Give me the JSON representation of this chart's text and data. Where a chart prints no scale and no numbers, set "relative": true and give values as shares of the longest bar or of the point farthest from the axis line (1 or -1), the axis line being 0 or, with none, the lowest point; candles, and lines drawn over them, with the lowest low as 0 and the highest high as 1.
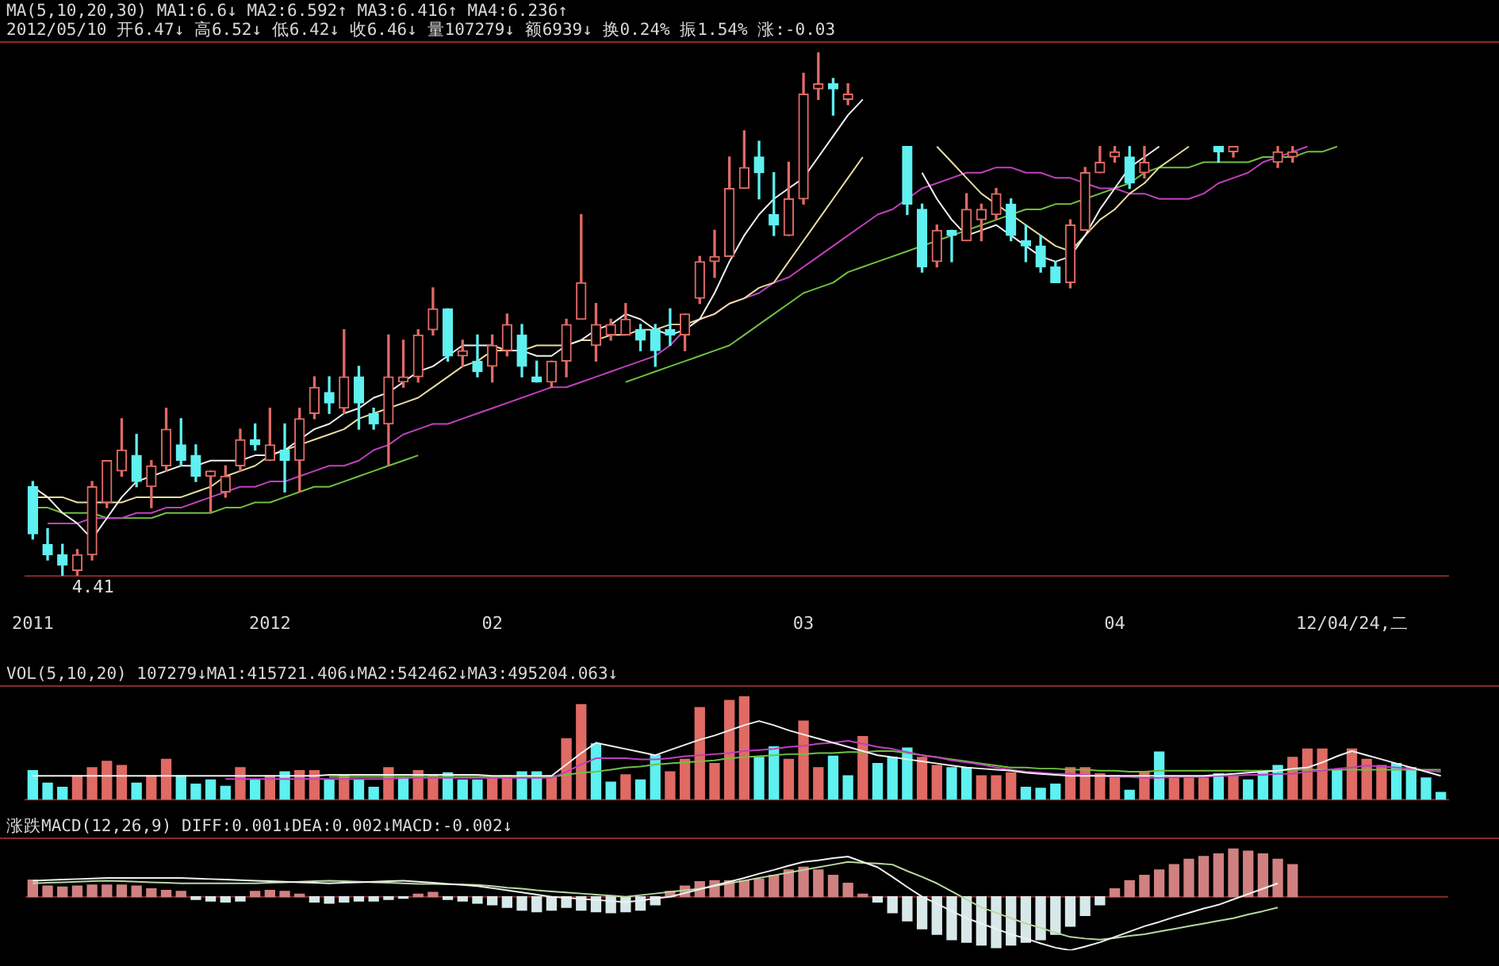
{
  "chart_data": [
    {
      "type": "candlestick",
      "relative": true,
      "tick_labels": "x",
      "categories": [
        "2011",
        null,
        null,
        null,
        null,
        null,
        null,
        null,
        null,
        null,
        null,
        null,
        null,
        null,
        null,
        null,
        "2012",
        null,
        null,
        null,
        null,
        null,
        null,
        null,
        null,
        null,
        null,
        null,
        null,
        null,
        null,
        "02",
        null,
        null,
        null,
        null,
        null,
        null,
        null,
        null,
        null,
        null,
        null,
        null,
        null,
        null,
        null,
        null,
        null,
        null,
        null,
        null,
        "03",
        null,
        null,
        null,
        null,
        null,
        null,
        null,
        null,
        null,
        null,
        null,
        null,
        null,
        null,
        null,
        null,
        null,
        null,
        null,
        null,
        "04",
        null,
        null,
        null,
        null,
        null,
        null,
        null,
        null,
        null,
        null,
        null,
        null,
        null,
        null,
        null,
        "12/04/24,二",
        null,
        null,
        null,
        null,
        null,
        null
      ],
      "title": "MA(5,10,20,30) MA1:6.6↓ MA2:6.592↑ MA3:6.416↑ MA4:6.236↑",
      "subtitle": "2012/05/10 开6.47↓ 高6.52↓ 低6.42↓ 收6.46↓ 量107279↓ 额6939↓ 换0.24% 振1.54% 涨:-0.03",
      "annotations": [
        "4.41"
      ],
      "series": [
        {
          "ohlc": [
            [
              0.17,
              0.18,
              0.07,
              0.08
            ],
            [
              0.06,
              0.09,
              0.03,
              0.04
            ],
            [
              0.04,
              0.06,
              0.0,
              0.02
            ],
            [
              0.01,
              0.05,
              0.0,
              0.04
            ],
            [
              0.04,
              0.18,
              0.03,
              0.17
            ],
            [
              0.14,
              0.22,
              0.13,
              0.22
            ],
            [
              0.2,
              0.3,
              0.19,
              0.24
            ],
            [
              0.23,
              0.27,
              0.17,
              0.18
            ],
            [
              0.17,
              0.22,
              0.13,
              0.21
            ],
            [
              0.21,
              0.32,
              0.2,
              0.28
            ],
            [
              0.25,
              0.3,
              0.21,
              0.22
            ],
            [
              0.23,
              0.25,
              0.18,
              0.19
            ],
            [
              0.19,
              0.2,
              0.12,
              0.2
            ],
            [
              0.16,
              0.21,
              0.15,
              0.19
            ],
            [
              0.21,
              0.28,
              0.2,
              0.26
            ],
            [
              0.26,
              0.29,
              0.24,
              0.25
            ],
            [
              0.22,
              0.32,
              0.22,
              0.25
            ],
            [
              0.24,
              0.29,
              0.16,
              0.22
            ],
            [
              0.22,
              0.32,
              0.16,
              0.3
            ],
            [
              0.31,
              0.38,
              0.3,
              0.36
            ],
            [
              0.35,
              0.38,
              0.31,
              0.33
            ],
            [
              0.32,
              0.47,
              0.31,
              0.38
            ],
            [
              0.38,
              0.4,
              0.28,
              0.33
            ],
            [
              0.31,
              0.32,
              0.28,
              0.29
            ],
            [
              0.29,
              0.46,
              0.21,
              0.38
            ],
            [
              0.37,
              0.45,
              0.36,
              0.38
            ],
            [
              0.38,
              0.47,
              0.37,
              0.46
            ],
            [
              0.47,
              0.55,
              0.46,
              0.51
            ],
            [
              0.51,
              0.51,
              0.41,
              0.42
            ],
            [
              0.42,
              0.45,
              0.4,
              0.43
            ],
            [
              0.41,
              0.46,
              0.38,
              0.39
            ],
            [
              0.4,
              0.46,
              0.37,
              0.44
            ],
            [
              0.43,
              0.5,
              0.42,
              0.48
            ],
            [
              0.46,
              0.48,
              0.38,
              0.4
            ],
            [
              0.38,
              0.41,
              0.37,
              0.37
            ],
            [
              0.37,
              0.41,
              0.36,
              0.41
            ],
            [
              0.41,
              0.49,
              0.38,
              0.48
            ],
            [
              0.49,
              0.69,
              0.49,
              0.56
            ],
            [
              0.44,
              0.52,
              0.41,
              0.48
            ],
            [
              0.46,
              0.49,
              0.45,
              0.48
            ],
            [
              0.46,
              0.52,
              0.46,
              0.49
            ],
            [
              0.47,
              0.48,
              0.43,
              0.45
            ],
            [
              0.47,
              0.48,
              0.4,
              0.43
            ],
            [
              0.47,
              0.51,
              0.44,
              0.46
            ],
            [
              0.46,
              0.5,
              0.43,
              0.5
            ],
            [
              0.53,
              0.61,
              0.52,
              0.6
            ],
            [
              0.6,
              0.66,
              0.57,
              0.61
            ],
            [
              0.61,
              0.8,
              0.61,
              0.74
            ],
            [
              0.74,
              0.85,
              0.74,
              0.78
            ],
            [
              0.8,
              0.83,
              0.72,
              0.77
            ],
            [
              0.69,
              0.77,
              0.65,
              0.67
            ],
            [
              0.65,
              0.79,
              0.65,
              0.72
            ],
            [
              0.72,
              0.96,
              0.71,
              0.92
            ],
            [
              0.93,
              1.0,
              0.91,
              0.94
            ],
            [
              0.94,
              0.95,
              0.88,
              0.93
            ],
            [
              0.91,
              0.94,
              0.9,
              0.92
            ],
            null,
            null,
            null,
            [
              0.82,
              0.82,
              0.69,
              0.71
            ],
            [
              0.7,
              0.71,
              0.58,
              0.59
            ],
            [
              0.6,
              0.67,
              0.59,
              0.66
            ],
            [
              0.66,
              0.66,
              0.6,
              0.65
            ],
            [
              0.64,
              0.73,
              0.64,
              0.7
            ],
            [
              0.68,
              0.71,
              0.64,
              0.7
            ],
            [
              0.69,
              0.74,
              0.68,
              0.73
            ],
            [
              0.71,
              0.72,
              0.64,
              0.65
            ],
            [
              0.64,
              0.67,
              0.6,
              0.63
            ],
            [
              0.63,
              0.65,
              0.58,
              0.59
            ],
            [
              0.59,
              0.6,
              0.56,
              0.56
            ],
            [
              0.56,
              0.68,
              0.55,
              0.67
            ],
            [
              0.66,
              0.78,
              0.66,
              0.77
            ],
            [
              0.77,
              0.82,
              0.77,
              0.79
            ],
            [
              0.8,
              0.82,
              0.79,
              0.81
            ],
            [
              0.8,
              0.82,
              0.74,
              0.75
            ],
            [
              0.77,
              0.82,
              0.76,
              0.79
            ],
            null,
            null,
            null,
            null,
            [
              0.82,
              0.82,
              0.79,
              0.81
            ],
            [
              0.81,
              0.82,
              0.8,
              0.82
            ],
            null,
            null,
            [
              0.79,
              0.82,
              0.78,
              0.81
            ],
            [
              0.8,
              0.82,
              0.79,
              0.81
            ],
            null,
            null,
            null,
            null,
            null,
            null,
            null,
            null,
            null,
            null
          ]
        },
        {
          "type": "line",
          "color": "#f0f0f0",
          "values": [
            0.17,
            0.15,
            0.12,
            0.1,
            0.07,
            0.11,
            0.15,
            0.18,
            0.19,
            0.2,
            0.21,
            0.21,
            0.22,
            0.22,
            0.22,
            0.23,
            0.23,
            0.24,
            0.26,
            0.28,
            0.29,
            0.31,
            0.32,
            0.34,
            0.35,
            0.37,
            0.39,
            0.4,
            0.42,
            0.44,
            0.44,
            0.44,
            0.43,
            0.43,
            0.42,
            0.42,
            0.44,
            0.45,
            0.47,
            0.48,
            0.5,
            0.49,
            0.47,
            0.46,
            0.47,
            0.49,
            0.54,
            0.6,
            0.65,
            0.69,
            0.72,
            0.74,
            0.76,
            0.8,
            0.84,
            0.88,
            0.91,
            null,
            null,
            null,
            0.77,
            0.72,
            0.68,
            0.65,
            0.66,
            0.67,
            0.65,
            0.63,
            0.61,
            0.6,
            0.61,
            0.65,
            0.7,
            0.74,
            0.78,
            0.8,
            0.82,
            null,
            null,
            null,
            null,
            null,
            null,
            null,
            null,
            null,
            null,
            null,
            null,
            null,
            null,
            null,
            null,
            null,
            null,
            null
          ]
        },
        {
          "type": "line",
          "color": "#e8dca0",
          "values": [
            0.15,
            0.15,
            0.15,
            0.14,
            0.14,
            0.14,
            0.14,
            0.15,
            0.15,
            0.15,
            0.15,
            0.16,
            0.17,
            0.19,
            0.2,
            0.21,
            0.23,
            0.24,
            0.25,
            0.26,
            0.27,
            0.28,
            0.3,
            0.31,
            0.32,
            0.33,
            0.34,
            0.36,
            0.38,
            0.4,
            0.41,
            0.43,
            0.43,
            0.43,
            0.44,
            0.44,
            0.44,
            0.45,
            0.45,
            0.46,
            0.46,
            0.47,
            0.47,
            0.48,
            0.48,
            0.49,
            0.5,
            0.52,
            0.53,
            0.55,
            0.56,
            0.6,
            0.64,
            0.68,
            0.72,
            0.76,
            0.8,
            null,
            null,
            null,
            null,
            0.82,
            0.79,
            0.76,
            0.73,
            0.71,
            0.69,
            0.67,
            0.65,
            0.63,
            0.62,
            0.65,
            0.68,
            0.7,
            0.73,
            0.75,
            0.78,
            0.8,
            0.82,
            null,
            null,
            null,
            null,
            null,
            null,
            null,
            null,
            null,
            null,
            null,
            null,
            null,
            null,
            null,
            null,
            null
          ]
        },
        {
          "type": "line",
          "color": "#c040c0",
          "values": [
            null,
            0.1,
            0.1,
            0.1,
            0.11,
            0.11,
            0.11,
            0.12,
            0.12,
            0.13,
            0.13,
            0.14,
            0.15,
            0.16,
            0.17,
            0.17,
            0.18,
            0.18,
            0.19,
            0.2,
            0.21,
            0.21,
            0.22,
            0.24,
            0.25,
            0.27,
            0.28,
            0.29,
            0.29,
            0.3,
            0.31,
            0.32,
            0.33,
            0.34,
            0.35,
            0.36,
            0.36,
            0.37,
            0.38,
            0.39,
            0.4,
            0.41,
            0.42,
            0.44,
            0.47,
            0.49,
            0.5,
            0.52,
            0.53,
            0.54,
            0.56,
            0.57,
            0.59,
            0.61,
            0.63,
            0.65,
            0.67,
            0.69,
            0.7,
            0.72,
            0.74,
            0.75,
            0.76,
            0.77,
            0.77,
            0.78,
            0.78,
            0.77,
            0.77,
            0.76,
            0.76,
            0.75,
            0.74,
            0.74,
            0.73,
            0.73,
            0.72,
            0.72,
            0.72,
            0.73,
            0.75,
            0.76,
            0.77,
            0.79,
            0.8,
            0.81,
            0.82,
            null,
            null,
            null,
            null,
            null,
            null,
            null,
            null,
            null
          ]
        },
        {
          "type": "line",
          "color": "#70c040",
          "values": [
            0.13,
            0.13,
            0.12,
            0.12,
            0.12,
            0.11,
            0.11,
            0.11,
            0.11,
            0.12,
            0.12,
            0.12,
            0.12,
            0.13,
            0.13,
            0.14,
            0.14,
            0.15,
            0.16,
            0.17,
            0.17,
            0.18,
            0.19,
            0.2,
            0.21,
            0.22,
            0.23,
            null,
            null,
            null,
            null,
            null,
            null,
            null,
            null,
            null,
            null,
            null,
            null,
            null,
            0.37,
            0.38,
            0.39,
            0.4,
            0.41,
            0.42,
            0.43,
            0.44,
            0.46,
            0.48,
            0.5,
            0.52,
            0.54,
            0.55,
            0.56,
            0.58,
            0.59,
            0.6,
            0.61,
            0.62,
            0.63,
            0.64,
            0.65,
            0.66,
            0.67,
            0.68,
            0.69,
            0.7,
            0.7,
            0.71,
            0.71,
            0.72,
            0.73,
            0.74,
            0.75,
            0.77,
            0.78,
            0.78,
            0.78,
            0.79,
            0.79,
            0.79,
            0.79,
            0.8,
            0.8,
            0.8,
            0.81,
            0.81,
            0.82,
            null,
            null,
            null,
            null,
            null,
            null,
            null
          ]
        }
      ]
    },
    {
      "type": "bar",
      "relative": true,
      "tick_labels": false,
      "categories": [
        null,
        null,
        null,
        null,
        null,
        null,
        null,
        null,
        null,
        null,
        null,
        null,
        null,
        null,
        null,
        null,
        null,
        null,
        null,
        null,
        null,
        null,
        null,
        null,
        null,
        null,
        null,
        null,
        null,
        null,
        null,
        null,
        null,
        null,
        null,
        null,
        null,
        null,
        null,
        null,
        null,
        null,
        null,
        null,
        null,
        null,
        null,
        null,
        null,
        null,
        null,
        null,
        null,
        null,
        null,
        null,
        null,
        null,
        null,
        null,
        null,
        null,
        null,
        null,
        null,
        null,
        null,
        null,
        null,
        null,
        null,
        null,
        null,
        null,
        null,
        null,
        null,
        null,
        null,
        null,
        null,
        null,
        null,
        null,
        null,
        null,
        null,
        null,
        null,
        null,
        null,
        null,
        null,
        null,
        null,
        null
      ],
      "title": "VOL(5,10,20) 107279↓MA1:415721.406↓MA2:542462↓MA3:495204.063↓",
      "series": [
        {
          "values": [
            0.28,
            0.16,
            0.12,
            0.23,
            0.31,
            0.37,
            0.33,
            0.16,
            0.23,
            0.39,
            0.23,
            0.15,
            0.19,
            0.13,
            0.31,
            0.19,
            0.23,
            0.27,
            0.28,
            0.28,
            0.19,
            0.23,
            0.19,
            0.12,
            0.31,
            0.21,
            0.28,
            0.24,
            0.26,
            0.19,
            0.19,
            0.21,
            0.23,
            0.27,
            0.27,
            0.23,
            0.59,
            0.92,
            0.54,
            0.17,
            0.24,
            0.19,
            0.43,
            0.27,
            0.39,
            0.89,
            0.35,
            0.96,
            1.0,
            0.41,
            0.51,
            0.39,
            0.76,
            0.31,
            0.42,
            0.23,
            0.61,
            0.35,
            0.41,
            0.5,
            0.41,
            0.33,
            0.31,
            0.31,
            0.23,
            0.23,
            0.26,
            0.12,
            0.11,
            0.15,
            0.31,
            0.31,
            0.25,
            0.23,
            0.09,
            0.27,
            0.46,
            0.21,
            0.21,
            0.21,
            0.25,
            0.23,
            0.19,
            0.27,
            0.33,
            0.41,
            0.49,
            0.49,
            0.29,
            0.49,
            0.39,
            0.33,
            0.35,
            0.31,
            0.21,
            0.07
          ],
          "colors": [
            "#5ff0f0",
            "#5ff0f0",
            "#5ff0f0",
            "#e06a64",
            "#e06a64",
            "#e06a64",
            "#e06a64",
            "#5ff0f0",
            "#e06a64",
            "#e06a64",
            "#5ff0f0",
            "#5ff0f0",
            "#5ff0f0",
            "#5ff0f0",
            "#e06a64",
            "#5ff0f0",
            "#e06a64",
            "#5ff0f0",
            "#e06a64",
            "#e06a64",
            "#5ff0f0",
            "#e06a64",
            "#5ff0f0",
            "#5ff0f0",
            "#e06a64",
            "#5ff0f0",
            "#e06a64",
            "#e06a64",
            "#5ff0f0",
            "#5ff0f0",
            "#5ff0f0",
            "#e06a64",
            "#e06a64",
            "#5ff0f0",
            "#5ff0f0",
            "#e06a64",
            "#e06a64",
            "#e06a64",
            "#5ff0f0",
            "#5ff0f0",
            "#e06a64",
            "#5ff0f0",
            "#5ff0f0",
            "#e06a64",
            "#e06a64",
            "#e06a64",
            "#e06a64",
            "#e06a64",
            "#e06a64",
            "#5ff0f0",
            "#5ff0f0",
            "#e06a64",
            "#e06a64",
            "#e06a64",
            "#5ff0f0",
            "#5ff0f0",
            "#e06a64",
            "#5ff0f0",
            "#5ff0f0",
            "#5ff0f0",
            "#e06a64",
            "#e06a64",
            "#5ff0f0",
            "#5ff0f0",
            "#e06a64",
            "#e06a64",
            "#e06a64",
            "#5ff0f0",
            "#5ff0f0",
            "#5ff0f0",
            "#e06a64",
            "#e06a64",
            "#e06a64",
            "#e06a64",
            "#5ff0f0",
            "#e06a64",
            "#5ff0f0",
            "#e06a64",
            "#e06a64",
            "#e06a64",
            "#5ff0f0",
            "#e06a64",
            "#5ff0f0",
            "#5ff0f0",
            "#5ff0f0",
            "#e06a64",
            "#e06a64",
            "#e06a64",
            "#5ff0f0",
            "#e06a64",
            "#e06a64",
            "#e06a64",
            "#5ff0f0",
            "#5ff0f0",
            "#5ff0f0",
            "#5ff0f0"
          ]
        },
        {
          "type": "line",
          "color": "#f0f0f0",
          "values": [
            0.23,
            0.23,
            0.23,
            0.23,
            0.23,
            0.23,
            0.23,
            0.23,
            0.23,
            0.23,
            0.23,
            0.23,
            0.23,
            0.23,
            0.23,
            0.23,
            0.23,
            0.23,
            0.23,
            0.23,
            0.24,
            0.24,
            0.24,
            0.24,
            0.24,
            0.24,
            0.24,
            0.24,
            0.24,
            0.24,
            0.24,
            0.23,
            0.23,
            0.23,
            0.23,
            0.23,
            0.34,
            0.45,
            0.55,
            0.52,
            0.49,
            0.46,
            0.43,
            0.48,
            0.53,
            0.58,
            0.62,
            0.67,
            0.72,
            0.76,
            0.72,
            0.67,
            0.63,
            0.59,
            0.55,
            0.51,
            0.47,
            0.43,
            0.41,
            0.39,
            0.37,
            0.35,
            0.33,
            0.31,
            0.3,
            0.29,
            0.28,
            0.26,
            0.25,
            0.24,
            0.23,
            0.23,
            0.23,
            0.23,
            0.23,
            0.23,
            0.23,
            0.23,
            0.23,
            0.23,
            0.24,
            0.25,
            0.26,
            0.27,
            0.28,
            0.3,
            0.31,
            0.36,
            0.42,
            0.47,
            0.43,
            0.39,
            0.35,
            0.31,
            0.27,
            0.23
          ]
        },
        {
          "type": "line",
          "color": "#c040c0",
          "values": [
            null,
            null,
            null,
            null,
            null,
            null,
            null,
            null,
            null,
            null,
            null,
            null,
            null,
            0.2,
            0.2,
            0.2,
            0.2,
            0.2,
            0.2,
            0.2,
            0.2,
            0.2,
            0.2,
            0.2,
            0.2,
            0.21,
            0.21,
            0.21,
            0.21,
            0.21,
            0.21,
            0.21,
            0.21,
            0.21,
            0.21,
            0.21,
            0.27,
            0.34,
            0.4,
            0.4,
            0.4,
            0.39,
            0.39,
            0.4,
            0.42,
            0.43,
            0.44,
            0.45,
            0.47,
            0.48,
            0.49,
            0.51,
            0.52,
            0.54,
            0.55,
            0.57,
            0.54,
            0.51,
            0.49,
            0.46,
            0.43,
            0.41,
            0.38,
            0.36,
            0.34,
            0.31,
            0.29,
            0.27,
            0.26,
            0.25,
            0.25,
            0.24,
            0.23,
            0.22,
            0.22,
            0.21,
            0.21,
            0.22,
            0.22,
            0.22,
            0.23,
            0.23,
            0.24,
            0.24,
            0.25,
            0.25,
            0.27,
            0.28,
            0.3,
            0.31,
            0.33,
            0.32,
            0.31,
            0.3,
            0.28,
            0.27
          ]
        },
        {
          "type": "line",
          "color": "#70c040",
          "values": [
            null,
            null,
            null,
            null,
            null,
            null,
            null,
            null,
            null,
            null,
            null,
            null,
            null,
            null,
            null,
            null,
            null,
            null,
            null,
            null,
            0.22,
            0.22,
            0.22,
            0.22,
            0.22,
            0.22,
            0.22,
            0.22,
            0.22,
            0.22,
            0.22,
            0.22,
            0.22,
            0.22,
            0.22,
            0.22,
            0.24,
            0.26,
            0.27,
            0.29,
            0.31,
            0.32,
            0.34,
            0.35,
            0.36,
            0.37,
            0.38,
            0.4,
            0.41,
            0.42,
            0.43,
            0.44,
            0.44,
            0.45,
            0.45,
            0.46,
            0.46,
            0.47,
            0.47,
            0.45,
            0.43,
            0.41,
            0.39,
            0.37,
            0.35,
            0.33,
            0.31,
            0.31,
            0.3,
            0.3,
            0.29,
            0.29,
            0.28,
            0.28,
            0.27,
            0.27,
            0.28,
            0.28,
            0.28,
            0.28,
            0.28,
            0.28,
            0.28,
            0.28,
            0.28,
            0.29,
            0.29,
            0.29,
            0.29,
            0.29,
            0.29,
            0.29,
            0.29,
            0.29,
            0.29,
            0.29
          ]
        }
      ]
    },
    {
      "type": "bar",
      "relative": true,
      "tick_labels": false,
      "categories": [
        null,
        null,
        null,
        null,
        null,
        null,
        null,
        null,
        null,
        null,
        null,
        null,
        null,
        null,
        null,
        null,
        null,
        null,
        null,
        null,
        null,
        null,
        null,
        null,
        null,
        null,
        null,
        null,
        null,
        null,
        null,
        null,
        null,
        null,
        null,
        null,
        null,
        null,
        null,
        null,
        null,
        null,
        null,
        null,
        null,
        null,
        null,
        null,
        null,
        null,
        null,
        null,
        null,
        null,
        null,
        null,
        null,
        null,
        null,
        null,
        null,
        null,
        null,
        null,
        null,
        null,
        null,
        null,
        null,
        null,
        null,
        null,
        null,
        null,
        null,
        null,
        null,
        null,
        null,
        null,
        null,
        null,
        null,
        null,
        null,
        null,
        null,
        null,
        null,
        null,
        null,
        null,
        null,
        null,
        null,
        null
      ],
      "title": "涨跌MACD(12,26,9) DIFF:0.001↓DEA:0.002↓MACD:-0.002↓",
      "ref_lines": [
        {
          "axis": "y",
          "value": 0,
          "color": "#8a2a2a"
        }
      ],
      "series": [
        {
          "values": [
            0.31,
            0.2,
            0.18,
            0.2,
            0.22,
            0.22,
            0.22,
            0.2,
            0.15,
            0.12,
            0.1,
            -0.05,
            -0.08,
            -0.1,
            -0.08,
            0.1,
            0.12,
            0.1,
            0.05,
            -0.1,
            -0.12,
            -0.1,
            -0.08,
            -0.08,
            -0.05,
            -0.03,
            0.05,
            0.08,
            -0.05,
            -0.08,
            -0.12,
            -0.15,
            -0.2,
            -0.25,
            -0.28,
            -0.25,
            -0.2,
            -0.25,
            -0.28,
            -0.3,
            -0.28,
            -0.25,
            -0.15,
            0.1,
            0.2,
            0.28,
            0.3,
            0.3,
            0.3,
            0.33,
            0.4,
            0.5,
            0.55,
            0.5,
            0.4,
            0.25,
            0.05,
            -0.1,
            -0.3,
            -0.45,
            -0.6,
            -0.7,
            -0.8,
            -0.85,
            -0.9,
            -0.95,
            -0.9,
            -0.85,
            -0.8,
            -0.7,
            -0.55,
            -0.35,
            -0.15,
            0.15,
            0.3,
            0.4,
            0.5,
            0.6,
            0.7,
            0.75,
            0.8,
            0.9,
            0.85,
            0.8,
            0.7,
            0.6,
            null,
            null,
            null,
            null,
            null,
            null,
            null,
            null,
            null,
            null
          ],
          "colors": [
            "#d08080",
            "#d08080",
            "#d08080",
            "#d08080",
            "#d08080",
            "#d08080",
            "#d08080",
            "#d08080",
            "#d08080",
            "#d08080",
            "#d08080",
            "#d8e8e8",
            "#d8e8e8",
            "#d8e8e8",
            "#d8e8e8",
            "#d08080",
            "#d08080",
            "#d08080",
            "#d08080",
            "#d8e8e8",
            "#d8e8e8",
            "#d8e8e8",
            "#d8e8e8",
            "#d8e8e8",
            "#d8e8e8",
            "#d8e8e8",
            "#d08080",
            "#d08080",
            "#d8e8e8",
            "#d8e8e8",
            "#d8e8e8",
            "#d8e8e8",
            "#d8e8e8",
            "#d8e8e8",
            "#d8e8e8",
            "#d8e8e8",
            "#d8e8e8",
            "#d8e8e8",
            "#d8e8e8",
            "#d8e8e8",
            "#d8e8e8",
            "#d8e8e8",
            "#d8e8e8",
            "#d08080",
            "#d08080",
            "#d08080",
            "#d08080",
            "#d08080",
            "#d08080",
            "#d08080",
            "#d08080",
            "#d08080",
            "#d08080",
            "#d08080",
            "#d08080",
            "#d08080",
            "#d08080",
            "#d8e8e8",
            "#d8e8e8",
            "#d8e8e8",
            "#d8e8e8",
            "#d8e8e8",
            "#d8e8e8",
            "#d8e8e8",
            "#d8e8e8",
            "#d8e8e8",
            "#d8e8e8",
            "#d8e8e8",
            "#d8e8e8",
            "#d8e8e8",
            "#d8e8e8",
            "#d8e8e8",
            "#d8e8e8",
            "#d08080",
            "#d08080",
            "#d08080",
            "#d08080",
            "#d08080",
            "#d08080",
            "#d08080",
            "#d08080",
            "#d08080",
            "#d08080",
            "#d08080",
            "#d08080",
            "#d08080",
            null,
            null,
            null,
            null,
            null,
            null,
            null,
            null,
            null,
            null
          ]
        },
        {
          "type": "line",
          "color": "#f0f0f0",
          "values": [
            0.3,
            0.31,
            0.32,
            0.33,
            0.34,
            0.35,
            0.35,
            0.35,
            0.35,
            0.35,
            0.35,
            0.34,
            0.33,
            0.32,
            0.31,
            0.3,
            0.29,
            0.28,
            0.27,
            0.26,
            0.25,
            0.26,
            0.27,
            0.28,
            0.29,
            0.3,
            0.28,
            0.26,
            0.24,
            0.22,
            0.2,
            0.16,
            0.12,
            0.08,
            0.04,
            0.0,
            -0.02,
            -0.04,
            -0.06,
            -0.08,
            -0.1,
            -0.07,
            -0.03,
            0.0,
            0.07,
            0.14,
            0.21,
            0.28,
            0.35,
            0.43,
            0.5,
            0.58,
            0.65,
            0.68,
            0.72,
            0.75,
            0.65,
            0.55,
            0.37,
            0.18,
            0.0,
            -0.13,
            -0.27,
            -0.4,
            -0.5,
            -0.6,
            -0.7,
            -0.78,
            -0.87,
            -0.95,
            -1.0,
            -0.93,
            -0.85,
            -0.75,
            -0.65,
            -0.55,
            -0.47,
            -0.38,
            -0.3,
            -0.22,
            -0.15,
            -0.05,
            0.05,
            0.15,
            0.25,
            null,
            null,
            null,
            null,
            null,
            null,
            null,
            null,
            null,
            null,
            null
          ]
        },
        {
          "type": "line",
          "color": "#b8d8a0",
          "values": [
            0.25,
            0.26,
            0.27,
            0.28,
            0.29,
            0.3,
            0.29,
            0.28,
            0.27,
            0.26,
            0.25,
            0.25,
            0.25,
            0.25,
            0.25,
            0.25,
            0.26,
            0.27,
            0.28,
            0.29,
            0.3,
            0.29,
            0.28,
            0.27,
            0.26,
            0.25,
            0.24,
            0.24,
            0.23,
            0.23,
            0.22,
            0.2,
            0.17,
            0.15,
            0.12,
            0.1,
            0.08,
            0.06,
            0.04,
            0.02,
            0.0,
            0.03,
            0.06,
            0.09,
            0.12,
            0.15,
            0.2,
            0.25,
            0.3,
            0.35,
            0.4,
            0.45,
            0.5,
            0.55,
            0.6,
            0.65,
            0.63,
            0.62,
            0.6,
            0.48,
            0.37,
            0.25,
            0.1,
            -0.05,
            -0.2,
            -0.3,
            -0.4,
            -0.5,
            -0.58,
            -0.67,
            -0.75,
            -0.78,
            -0.8,
            -0.77,
            -0.73,
            -0.7,
            -0.65,
            -0.6,
            -0.55,
            -0.5,
            -0.45,
            -0.4,
            -0.33,
            -0.27,
            -0.2,
            null,
            null,
            null,
            null,
            null,
            null,
            null,
            null,
            null,
            null,
            null
          ]
        }
      ]
    }
  ]
}
